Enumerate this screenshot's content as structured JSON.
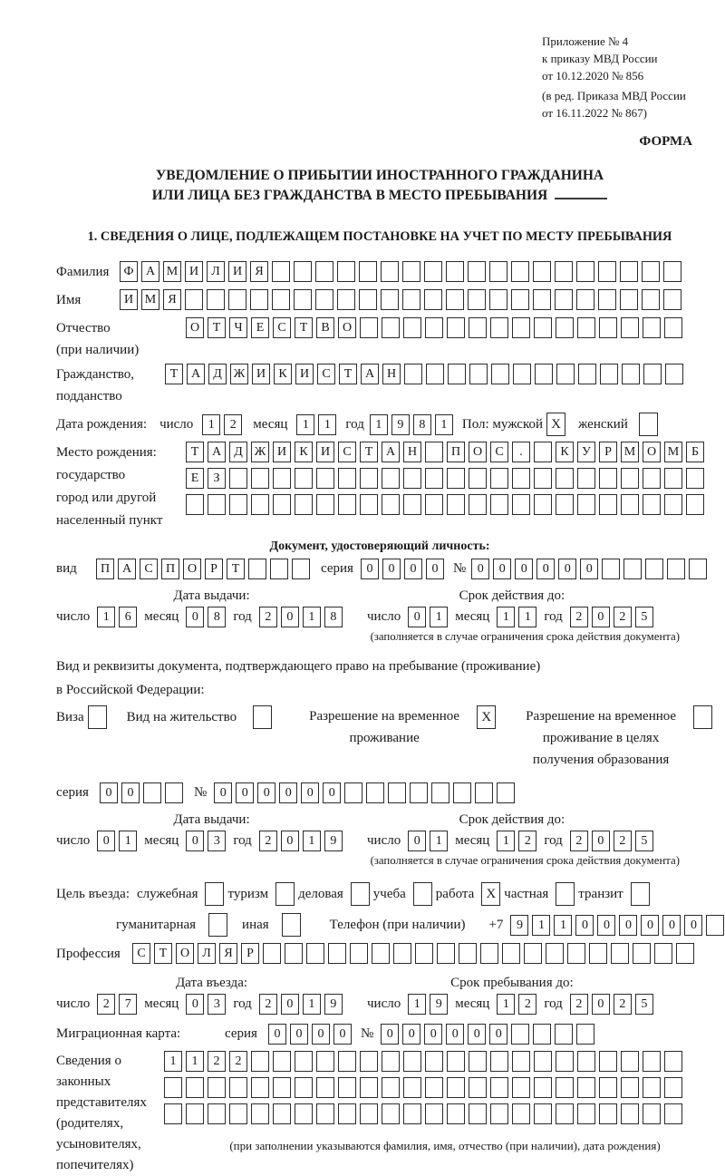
{
  "header": {
    "lines": [
      "Приложение № 4",
      "к приказу МВД России",
      "от 10.12.2020 № 856"
    ],
    "amendment": [
      "(в ред. Приказа МВД России",
      "от 16.11.2022 № 867)"
    ],
    "forma": "ФОРМА"
  },
  "title": {
    "line1": "УВЕДОМЛЕНИЕ О ПРИБЫТИИ ИНОСТРАННОГО ГРАЖДАНИНА",
    "line2": "ИЛИ ЛИЦА БЕЗ ГРАЖДАНСТВА В МЕСТО ПРЕБЫВАНИЯ"
  },
  "section1_title": "1. СВЕДЕНИЯ О ЛИЦЕ, ПОДЛЕЖАЩЕМ ПОСТАНОВКЕ НА УЧЕТ ПО МЕСТУ ПРЕБЫВАНИЯ",
  "labels": {
    "surname": "Фамилия",
    "name": "Имя",
    "patronymic": "Отчество",
    "patronymic_note": "(при наличии)",
    "citizenship1": "Гражданство,",
    "citizenship2": "подданство",
    "birthdate": "Дата рождения:",
    "day": "число",
    "month": "месяц",
    "year": "год",
    "sex_male": "Пол: мужской",
    "sex_female": "женский",
    "birthplace1": "Место рождения:",
    "birthplace2": "государство",
    "birthplace3": "город или другой",
    "birthplace4": "населенный пункт",
    "identity_doc_title": "Документ, удостоверяющий личность:",
    "doc_type": "вид",
    "series": "серия",
    "number_sign": "№",
    "issue_date": "Дата выдачи:",
    "valid_until": "Срок действия до:",
    "valid_note": "(заполняется в случае ограничения срока действия документа)",
    "residence_line1": "Вид и реквизиты документа, подтверждающего право на пребывание (проживание)",
    "residence_line2": "в Российской Федерации:",
    "visa": "Виза",
    "vnzh": "Вид на жительство",
    "rvp": "Разрешение на временное проживание",
    "rvp_edu": "Разрешение на временное проживание в целях получения образования",
    "purpose": "Цель въезда:",
    "sluzhebnaya": "служебная",
    "turizm": "туризм",
    "delovaya": "деловая",
    "ucheba": "учеба",
    "rabota": "работа",
    "chastnaya": "частная",
    "tranzit": "транзит",
    "gumanitarnaya": "гуманитарная",
    "inaya": "иная",
    "phone": "Телефон (при наличии)",
    "plus7": "+7",
    "profession": "Профессия",
    "entry_date": "Дата въезда:",
    "stay_until": "Срок пребывания до:",
    "migr_card": "Миграционная карта:",
    "reps_lines": [
      "Сведения о",
      "законных",
      "представителях",
      "(родителях,",
      "усыновителях,",
      "попечителях)"
    ],
    "reps_note": "(при заполнении указываются фамилия, имя, отчество (при наличии), дата рождения)"
  },
  "person": {
    "surname": {
      "chars": "ФАМИЛИЯ",
      "count": 26
    },
    "name": {
      "chars": "ИМЯ",
      "count": 26
    },
    "patronymic": {
      "chars": "ОТЧЕСТВО",
      "count": 23
    },
    "citizenship": {
      "chars": "ТАДЖИКИСТАН",
      "count": 24
    },
    "birth_day": {
      "chars": "12",
      "count": 2
    },
    "birth_month": {
      "chars": "11",
      "count": 2
    },
    "birth_year": {
      "chars": "1981",
      "count": 4
    },
    "sex_male_mark": "X",
    "sex_female_mark": "",
    "birthplace_row1": {
      "chars": "ТАДЖИКИСТАН ПОС. КУРМОМБ",
      "count": 24
    },
    "birthplace_row2": {
      "chars": "ЕЗ",
      "count": 24
    },
    "birthplace_row3": {
      "chars": "",
      "count": 24
    }
  },
  "identity_doc": {
    "type": {
      "chars": "ПАСПОРТ",
      "count": 10
    },
    "series": {
      "chars": "0000",
      "count": 4
    },
    "number": {
      "chars": "000000",
      "count": 11
    },
    "issue_day": {
      "chars": "16",
      "count": 2
    },
    "issue_month": {
      "chars": "08",
      "count": 2
    },
    "issue_year": {
      "chars": "2018",
      "count": 4
    },
    "valid_day": {
      "chars": "01",
      "count": 2
    },
    "valid_month": {
      "chars": "11",
      "count": 2
    },
    "valid_year": {
      "chars": "2025",
      "count": 4
    }
  },
  "residence_doc": {
    "visa_mark": "",
    "vnzh_mark": "",
    "rvp_mark": "X",
    "rvp_edu_mark": "",
    "series": {
      "chars": "00",
      "count": 4
    },
    "number": {
      "chars": "000000",
      "count": 14
    },
    "issue_day": {
      "chars": "01",
      "count": 2
    },
    "issue_month": {
      "chars": "03",
      "count": 2
    },
    "issue_year": {
      "chars": "2019",
      "count": 4
    },
    "valid_day": {
      "chars": "01",
      "count": 2
    },
    "valid_month": {
      "chars": "12",
      "count": 2
    },
    "valid_year": {
      "chars": "2025",
      "count": 4
    }
  },
  "visit": {
    "marks": {
      "sluzhebnaya": "",
      "turizm": "",
      "delovaya": "",
      "ucheba": "",
      "rabota": "X",
      "chastnaya": "",
      "tranzit": "",
      "gumanitarnaya": "",
      "inaya": ""
    },
    "phone": {
      "chars": "911000000",
      "count": 10
    },
    "profession": {
      "chars": "СТОЛЯР",
      "count": 26
    },
    "entry_day": {
      "chars": "27",
      "count": 2
    },
    "entry_month": {
      "chars": "03",
      "count": 2
    },
    "entry_year": {
      "chars": "2019",
      "count": 4
    },
    "stay_day": {
      "chars": "19",
      "count": 2
    },
    "stay_month": {
      "chars": "12",
      "count": 2
    },
    "stay_year": {
      "chars": "2025",
      "count": 4
    },
    "migr_series": {
      "chars": "0000",
      "count": 4
    },
    "migr_number": {
      "chars": "000000",
      "count": 10
    }
  },
  "representatives": {
    "row1": {
      "chars": "1122",
      "count": 24
    },
    "row2": {
      "chars": "",
      "count": 24
    },
    "row3": {
      "chars": "",
      "count": 24
    }
  }
}
